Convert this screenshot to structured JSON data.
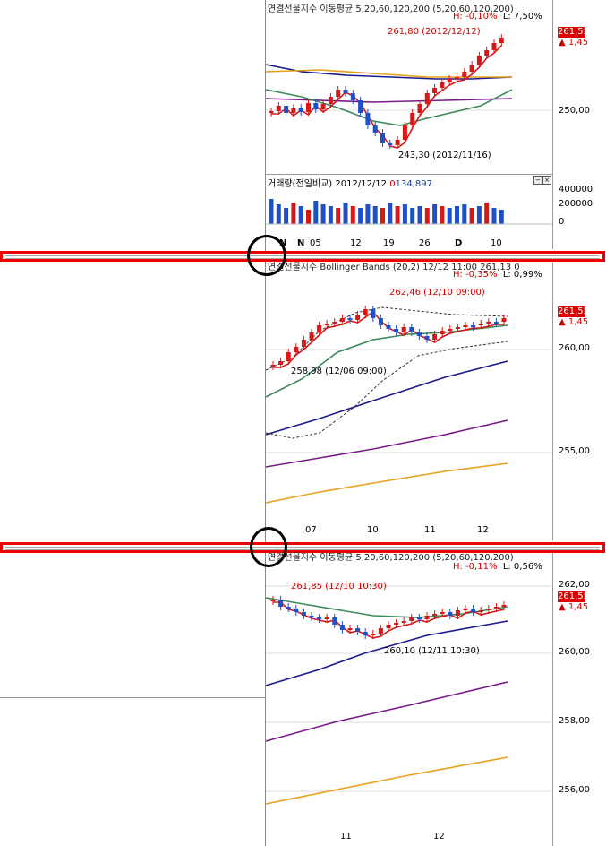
{
  "chart1": {
    "title": "연결선물지수 이동평균 5,20,60,120,200 (5,20,60,120,200)",
    "high_label": "H: -0,10%",
    "low_label": "L: 7,50%",
    "annotation_high": "261,80 (2012/12/12)",
    "annotation_low": "243,30 (2012/11/16)",
    "price_box": "261,55",
    "change": "▲ 1,45",
    "y_ticks": [
      "250,00"
    ],
    "volume": {
      "title": "거래량(전일비교)",
      "date": "2012/12/12",
      "prefix": "0",
      "value": "134,897",
      "y_ticks": [
        "400000",
        "200000",
        "0"
      ]
    },
    "x_ticks": [
      "N",
      "05",
      "12",
      "19",
      "26",
      "D",
      "10"
    ]
  },
  "chart2": {
    "title": "연결선물지수 Bollinger Bands (20,2) 12/12 11:00 261,13 0",
    "high_label": "H: -0,35%",
    "low_label": "L: 0,99%",
    "annotation_high": "262,46 (12/10 09:00)",
    "annotation_low": "258,98 (12/06 09:00)",
    "price_box": "261,55",
    "change": "▲ 1,45",
    "y_ticks": [
      "260,00",
      "255,00"
    ],
    "x_ticks": [
      "07",
      "10",
      "11",
      "12"
    ]
  },
  "chart3": {
    "title": "연결선물지수 이동평균 5,20,60,120,200 (5,20,60,120,200)",
    "high_label": "H: -0,11%",
    "low_label": "L: 0,56%",
    "annotation_high": "261,85 (12/10 10:30)",
    "annotation_low": "260,10 (12/11 10:30)",
    "price_box": "261,55",
    "change": "▲ 1,45",
    "y_ticks": [
      "262,00",
      "260,00",
      "258,00",
      "256,00"
    ],
    "x_ticks": [
      "11",
      "12"
    ]
  },
  "colors": {
    "up": "#d81818",
    "down": "#2050c8",
    "ma5": "#d81818",
    "ma20": "#3a8a5a",
    "ma60": "#1a1a8c",
    "ma120": "#7a1a8a",
    "ma200": "#e8a018",
    "highlight": "#e00000"
  }
}
